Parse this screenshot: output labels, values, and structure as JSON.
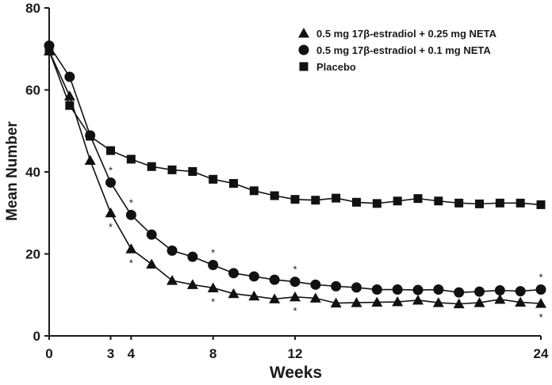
{
  "chart_data": {
    "type": "line",
    "xlabel": "Weeks",
    "ylabel": "Mean Number",
    "xlim": [
      0,
      24
    ],
    "ylim": [
      0,
      80
    ],
    "x_ticks": [
      0,
      3,
      4,
      8,
      12,
      24
    ],
    "x_tick_labels": [
      "0",
      "3",
      "4",
      "8",
      "12",
      "24"
    ],
    "y_ticks": [
      0,
      20,
      40,
      60,
      80
    ],
    "y_tick_labels": [
      "0",
      "20",
      "40",
      "60",
      "80"
    ],
    "grid": false,
    "legend_position": "top-right",
    "series": [
      {
        "name": "0.5 mg 17β-estradiol + 0.25 mg NETA",
        "marker": "triangle",
        "x": [
          0,
          1,
          2,
          3,
          4,
          5,
          6,
          7,
          8,
          9,
          10,
          11,
          12,
          13,
          14,
          15,
          16,
          17,
          18,
          19,
          20,
          21,
          22,
          23,
          24
        ],
        "values": [
          69.5,
          58.5,
          42.8,
          30.0,
          21.2,
          17.5,
          13.5,
          12.5,
          11.7,
          10.3,
          9.7,
          9.0,
          9.5,
          9.2,
          8.0,
          8.1,
          8.2,
          8.3,
          8.7,
          8.1,
          7.8,
          8.1,
          8.9,
          8.2,
          7.9
        ],
        "significant_marks": [
          3,
          4,
          8,
          12,
          24
        ],
        "mark_position": "below"
      },
      {
        "name": "0.5 mg 17β-estradiol + 0.1 mg NETA",
        "marker": "circle",
        "x": [
          0,
          1,
          2,
          3,
          4,
          5,
          6,
          7,
          8,
          9,
          10,
          11,
          12,
          13,
          14,
          15,
          16,
          17,
          18,
          19,
          20,
          21,
          22,
          23,
          24
        ],
        "values": [
          70.8,
          63.2,
          48.9,
          37.4,
          29.5,
          24.7,
          20.8,
          19.3,
          17.3,
          15.3,
          14.5,
          13.7,
          13.2,
          12.5,
          12.1,
          11.8,
          11.3,
          11.3,
          11.2,
          11.3,
          10.6,
          10.8,
          11.1,
          10.9,
          11.3
        ],
        "significant_marks": [
          3,
          4,
          8,
          12,
          24
        ],
        "mark_position": "above"
      },
      {
        "name": "Placebo",
        "marker": "square",
        "x": [
          0,
          1,
          2,
          3,
          4,
          5,
          6,
          7,
          8,
          9,
          10,
          11,
          12,
          13,
          14,
          15,
          16,
          17,
          18,
          19,
          20,
          21,
          22,
          23,
          24
        ],
        "values": [
          69.5,
          56.2,
          48.7,
          45.2,
          43.1,
          41.3,
          40.5,
          40.1,
          38.2,
          37.2,
          35.4,
          34.2,
          33.3,
          33.1,
          33.6,
          32.6,
          32.3,
          32.9,
          33.5,
          32.9,
          32.4,
          32.2,
          32.4,
          32.4,
          32.0
        ]
      }
    ],
    "significance_symbol": "*"
  }
}
